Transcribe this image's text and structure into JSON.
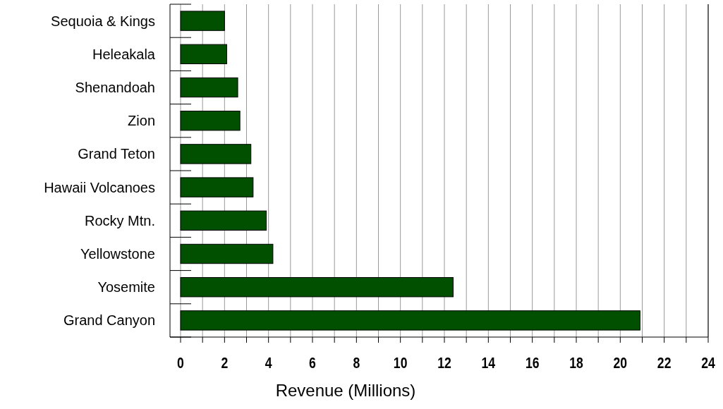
{
  "chart_data": {
    "type": "bar",
    "orientation": "horizontal",
    "xlabel": "Revenue (Millions)",
    "categories": [
      "Sequoia & Kings",
      "Heleakala",
      "Shenandoah",
      "Zion",
      "Grand Teton",
      "Hawaii Volcanoes",
      "Rocky Mtn.",
      "Yellowstone",
      "Yosemite",
      "Grand Canyon"
    ],
    "values": [
      2.0,
      2.1,
      2.6,
      2.7,
      3.2,
      3.3,
      3.9,
      4.2,
      12.4,
      20.9
    ],
    "color": "#005000",
    "xlim": [
      0,
      24
    ],
    "xticks": [
      0,
      {
        "value": 1,
        "label": null
      },
      2,
      {
        "value": 3,
        "label": null
      },
      4,
      {
        "value": 5,
        "label": null
      },
      6,
      {
        "value": 7,
        "label": null
      },
      8,
      {
        "value": 9,
        "label": null
      },
      10,
      {
        "value": 11,
        "label": null
      },
      12,
      {
        "value": 13,
        "label": null
      },
      14,
      {
        "value": 15,
        "label": null
      },
      16,
      {
        "value": 17,
        "label": null
      },
      18,
      {
        "value": 19,
        "label": null
      },
      20,
      {
        "value": 21,
        "label": null
      },
      22,
      {
        "value": 23,
        "label": null
      },
      24
    ],
    "grid": "x"
  }
}
